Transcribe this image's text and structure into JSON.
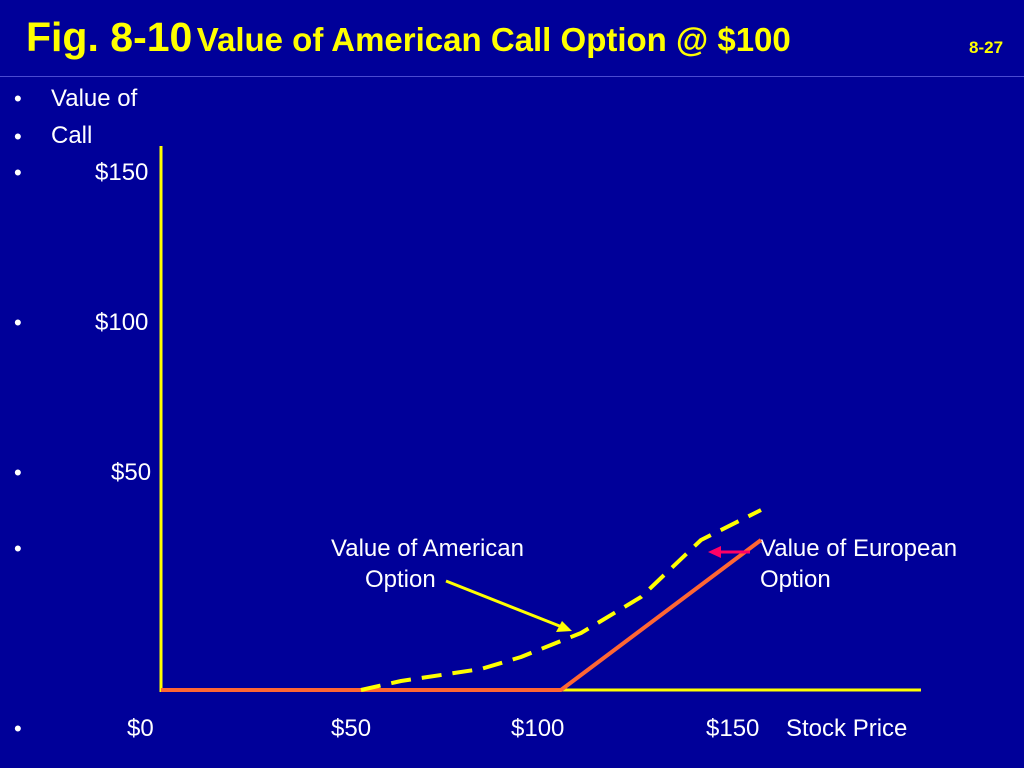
{
  "slide": {
    "title_fig": "Fig. 8-10",
    "title_text": "Value of American Call Option @ $100",
    "slide_number": "8-27"
  },
  "colors": {
    "background": "#000099",
    "title": "#ffff00",
    "axis": "#ffff00",
    "european_line": "#ff6633",
    "american_line": "#ffff00",
    "european_arrow": "#ff0066"
  },
  "chart_data": {
    "type": "line",
    "xlabel": "Stock Price",
    "ylabel": "Value of Call",
    "x_ticks": [
      "$0",
      "$50",
      "$100",
      "$150"
    ],
    "y_ticks": [
      "$150",
      "$100",
      "$50"
    ],
    "xlim": [
      0,
      190
    ],
    "ylim": [
      -7,
      145
    ],
    "series": [
      {
        "name": "Value of European Option",
        "style": "solid",
        "x": [
          0,
          100,
          150
        ],
        "y": [
          0,
          0,
          50
        ]
      },
      {
        "name": "Value of American Option",
        "style": "dashed",
        "x": [
          50,
          60,
          80,
          90,
          105,
          120,
          135,
          150
        ],
        "y": [
          0,
          3,
          7,
          11,
          19,
          31,
          50,
          60
        ]
      }
    ],
    "annotations": [
      {
        "line1": "Value of American",
        "line2": "Option"
      },
      {
        "line1": "Value of European",
        "line2": "Option"
      }
    ]
  }
}
